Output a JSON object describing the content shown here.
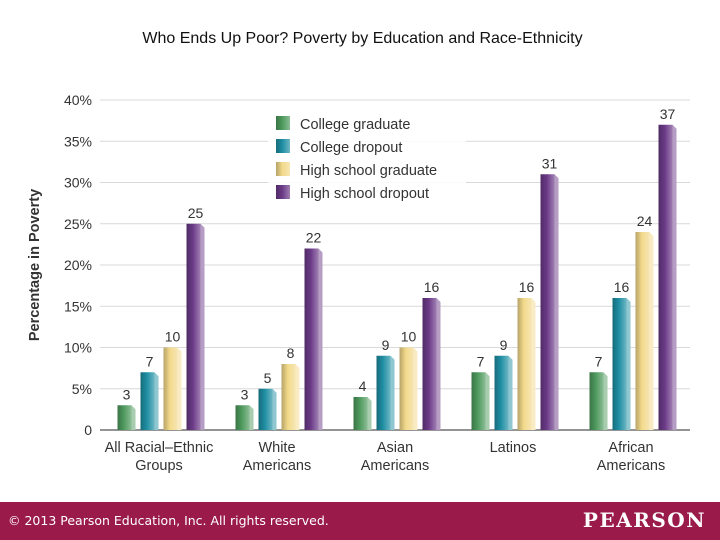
{
  "slide": {
    "footer_text": "© 2013 Pearson Education, Inc. All rights reserved.",
    "logo_text": "PEARSON",
    "footer_color": "#9a1b4a"
  },
  "chart_data": {
    "type": "bar",
    "title": "Who Ends Up Poor? Poverty by Education and Race-Ethnicity",
    "xlabel": "",
    "ylabel": "Percentage in Poverty",
    "ylim": [
      0,
      40
    ],
    "yticks": [
      "0",
      "5%",
      "10%",
      "15%",
      "20%",
      "25%",
      "30%",
      "35%",
      "40%"
    ],
    "grid": true,
    "legend_position": "top-center",
    "categories": [
      [
        "All Racial–Ethnic",
        "Groups"
      ],
      [
        "White",
        "Americans"
      ],
      [
        "Asian",
        "Americans"
      ],
      [
        "Latinos"
      ],
      [
        "African",
        "Americans"
      ]
    ],
    "series": [
      {
        "name": "College graduate",
        "color": "#4e9a5d",
        "values": [
          3,
          3,
          4,
          7,
          7
        ]
      },
      {
        "name": "College dropout",
        "color": "#1e8ea3",
        "values": [
          7,
          5,
          9,
          9,
          16
        ]
      },
      {
        "name": "High school graduate",
        "color": "#f2d98a",
        "values": [
          10,
          8,
          10,
          16,
          24
        ]
      },
      {
        "name": "High school dropout",
        "color": "#6b3a88",
        "values": [
          25,
          22,
          16,
          31,
          37
        ]
      }
    ]
  }
}
